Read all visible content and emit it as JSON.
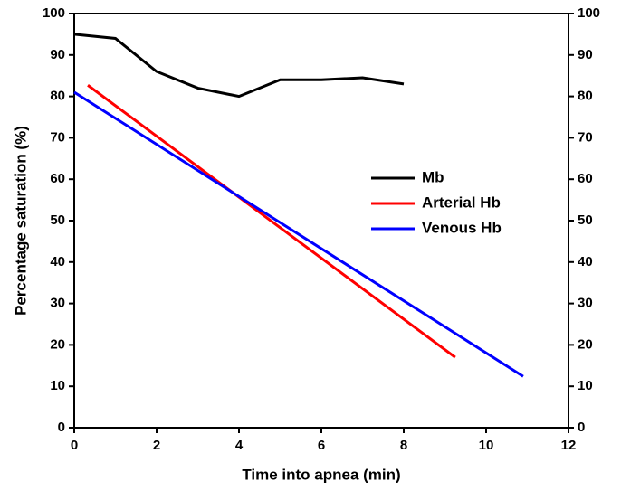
{
  "chart_data": {
    "type": "line",
    "x_label": "Time into apnea (min)",
    "y_label": "Percentage saturation (%)",
    "xlim": [
      0,
      12
    ],
    "xticks": [
      0,
      2,
      4,
      6,
      8,
      10,
      12
    ],
    "ylim": [
      0,
      100
    ],
    "yticks": [
      0,
      10,
      20,
      30,
      40,
      50,
      60,
      70,
      80,
      90,
      100
    ],
    "mirror_y_axis": true,
    "legend": "right",
    "series": [
      {
        "name": "Mb",
        "color": "#000000",
        "x": [
          0,
          1,
          2,
          3,
          4,
          5,
          6,
          7,
          8
        ],
        "values": [
          95,
          94,
          86,
          82,
          80,
          84,
          84,
          84.5,
          83
        ]
      },
      {
        "name": "Arterial Hb",
        "color": "#ff0000",
        "x": [
          0.33,
          9.25
        ],
        "values": [
          82.7,
          17
        ]
      },
      {
        "name": "Venous Hb",
        "color": "#0000ff",
        "x": [
          0,
          10.9
        ],
        "values": [
          81,
          12.4
        ]
      }
    ]
  }
}
